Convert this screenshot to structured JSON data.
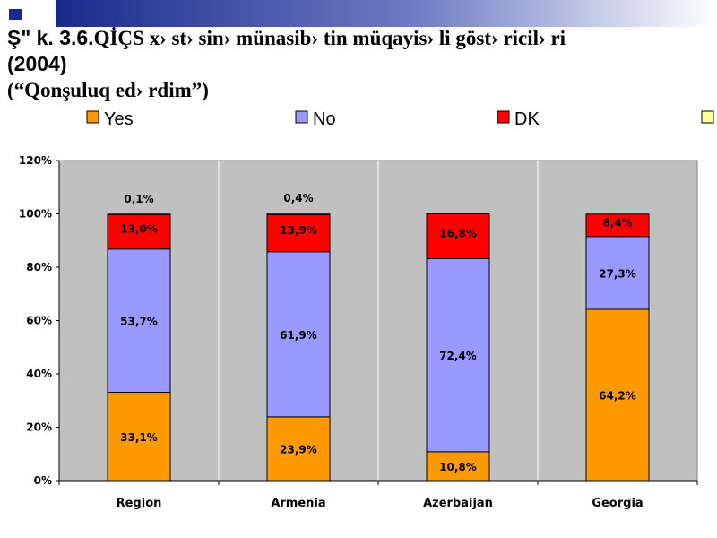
{
  "slide": {
    "title_line_1_prefix": "Ş\" k. 3.6.",
    "title_line_1_rest": "QİÇS x› st› sin›  münasib› tin müqayis› li göst› ricil› ri",
    "title_line_2": "(2004)",
    "title_line_3": "(“Qonşuluq ed› rdim”)"
  },
  "colors": {
    "header_band": "#1a2a8a",
    "header_fade": "#ffffff",
    "plot_background": "#c0c0c0",
    "yes": "#ff9900",
    "no": "#9999ff",
    "dk": "#ff0000",
    "fourth": "#ffff99"
  },
  "chart_data": {
    "type": "stacked-bar",
    "categories": [
      "Region",
      "Armenia",
      "Azerbaijan",
      "Georgia"
    ],
    "series": [
      {
        "name": "Yes",
        "color": "#ff9900",
        "values": [
          33.1,
          23.9,
          10.8,
          64.2
        ],
        "labels": [
          "33,1%",
          "23,9%",
          "10,8%",
          "64,2%"
        ]
      },
      {
        "name": "No",
        "color": "#9999ff",
        "values": [
          53.7,
          61.9,
          72.4,
          27.3
        ],
        "labels": [
          "53,7%",
          "61,9%",
          "72,4%",
          "27,3%"
        ]
      },
      {
        "name": "DK",
        "color": "#ff0000",
        "values": [
          13.0,
          13.9,
          16.8,
          8.4
        ],
        "labels": [
          "13,0%",
          "13,9%",
          "16,8%",
          "8,4%"
        ]
      },
      {
        "name": "",
        "color": "#ffff99",
        "values": [
          0.1,
          0.4,
          0,
          0
        ],
        "labels": [
          "0,1%",
          "0,4%",
          "",
          ""
        ]
      }
    ],
    "ylim": [
      0,
      120
    ],
    "y_ticks": [
      "0%",
      "20%",
      "40%",
      "60%",
      "80%",
      "100%",
      "120%"
    ],
    "grid": false,
    "legend_position": "top"
  }
}
